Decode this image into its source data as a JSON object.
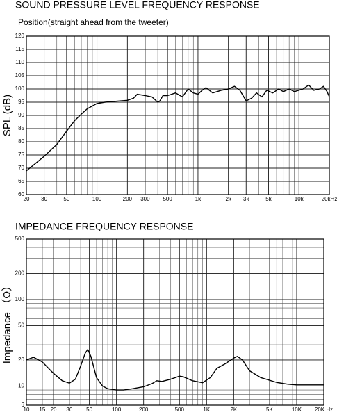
{
  "chart_data": [
    {
      "type": "line",
      "title": "SOUND PRESSURE LEVEL FREQUENCY RESPONSE",
      "subtitle": "Position(straight ahead from the tweeter)",
      "y_label": "SPL (dB)",
      "xscale": "log",
      "yscale": "linear",
      "grid": true,
      "color": "#000000",
      "xlim": [
        20,
        20000
      ],
      "ylim": [
        60,
        120
      ],
      "xticks": [
        20,
        30,
        50,
        100,
        200,
        300,
        500,
        {
          "value": 1000,
          "label": "1k"
        },
        {
          "value": 2000,
          "label": "2k"
        },
        {
          "value": 3000,
          "label": "3k"
        },
        {
          "value": 5000,
          "label": "5k"
        },
        {
          "value": 10000,
          "label": "10k"
        },
        {
          "value": 20000,
          "label": "20kHz"
        }
      ],
      "yticks": [
        60,
        65,
        70,
        75,
        80,
        85,
        90,
        95,
        100,
        105,
        110,
        115,
        120
      ],
      "x": [
        20,
        25,
        30,
        40,
        50,
        60,
        70,
        80,
        100,
        120,
        150,
        200,
        230,
        250,
        300,
        350,
        400,
        420,
        450,
        500,
        600,
        700,
        800,
        900,
        1000,
        1100,
        1200,
        1400,
        1700,
        2000,
        2300,
        2600,
        3000,
        3400,
        3800,
        4300,
        4800,
        5500,
        6300,
        7000,
        8000,
        9000,
        11000,
        12500,
        14000,
        16000,
        17500,
        19000,
        20000
      ],
      "values": [
        69,
        72,
        74.5,
        79,
        84,
        88,
        90.5,
        92.5,
        94.5,
        95,
        95.3,
        95.7,
        96.5,
        98,
        97.5,
        97,
        95,
        95.5,
        97.5,
        97.5,
        98.5,
        97,
        100,
        98.5,
        98,
        99.5,
        100.5,
        98.5,
        99.5,
        100,
        101,
        99.5,
        95.5,
        96.5,
        98.5,
        97,
        99.5,
        98.5,
        100,
        99,
        100,
        99,
        100,
        101.5,
        99.5,
        100,
        101,
        99,
        97
      ]
    },
    {
      "type": "line",
      "title": "IMPEDANCE FREQUENCY RESPONSE",
      "y_label": "Impedance （Ω）",
      "xscale": "log",
      "yscale": "log",
      "grid": true,
      "color": "#000000",
      "xlim": [
        10,
        20000
      ],
      "ylim": [
        6,
        500
      ],
      "xticks": [
        10,
        15,
        20,
        30,
        50,
        100,
        200,
        500,
        {
          "value": 1000,
          "label": "1K"
        },
        {
          "value": 2000,
          "label": "2K"
        },
        {
          "value": 5000,
          "label": "5K"
        },
        {
          "value": 10000,
          "label": "10K"
        },
        {
          "value": 20000,
          "label": "20K Hz"
        }
      ],
      "yticks": [
        6,
        10,
        20,
        50,
        100,
        200,
        500
      ],
      "x": [
        10,
        12,
        15,
        20,
        25,
        30,
        35,
        40,
        45,
        48,
        52,
        60,
        70,
        80,
        100,
        120,
        150,
        200,
        250,
        280,
        320,
        400,
        500,
        550,
        700,
        900,
        1100,
        1300,
        1600,
        2000,
        2200,
        2500,
        3000,
        4000,
        6000,
        8000,
        10000,
        20000
      ],
      "values": [
        20,
        21.5,
        19,
        14,
        11.5,
        10.8,
        12,
        17,
        24,
        26.5,
        22,
        12.5,
        10,
        9.3,
        9,
        9,
        9.3,
        9.8,
        10.7,
        11.5,
        11.3,
        12,
        13,
        12.8,
        11.5,
        10.9,
        12.5,
        16,
        18,
        21,
        22,
        20,
        15,
        12.5,
        11,
        10.5,
        10.3,
        10.3
      ]
    }
  ]
}
